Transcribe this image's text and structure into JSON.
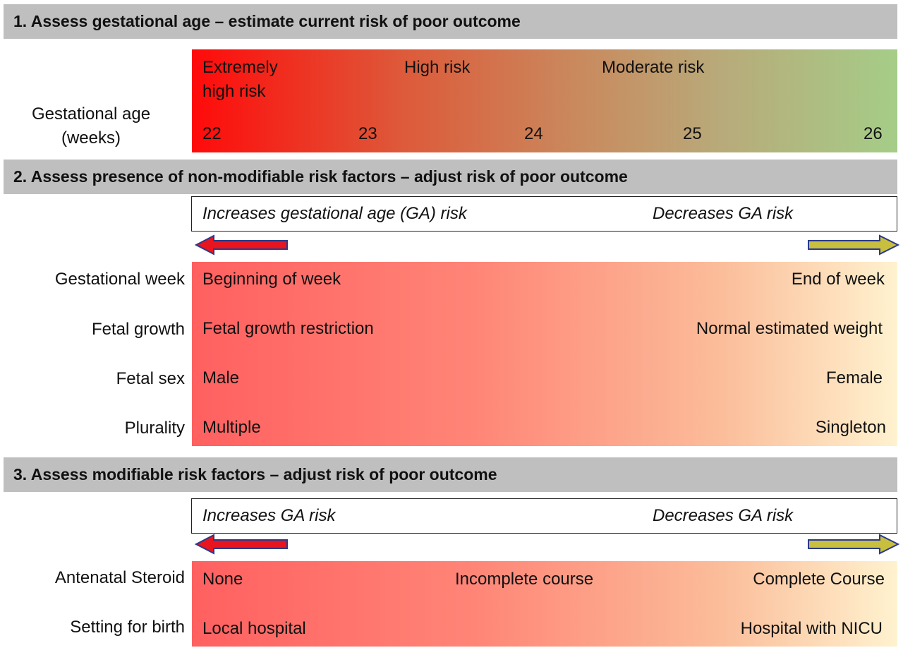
{
  "section1": {
    "heading": "1. Assess gestational age – estimate current risk of poor outcome",
    "row_label_line1": "Gestational age",
    "row_label_line2": "(weeks)",
    "risk_line1": "Extremely",
    "risk_line2": "high risk",
    "risk_high": "High risk",
    "risk_moderate": "Moderate risk",
    "weeks": [
      "22",
      "23",
      "24",
      "25",
      "26"
    ]
  },
  "section2": {
    "heading": "2. Assess presence of non-modifiable risk factors – adjust risk of poor outcome",
    "increase_label": "Increases gestational age (GA) risk",
    "decrease_label": "Decreases GA risk",
    "rows": [
      {
        "label": "Gestational week",
        "left": "Beginning of week",
        "right": "End of week"
      },
      {
        "label": "Fetal growth",
        "left": "Fetal growth restriction",
        "right": "Normal estimated weight"
      },
      {
        "label": "Fetal sex",
        "left": "Male",
        "right": "Female"
      },
      {
        "label": "Plurality",
        "left": "Multiple",
        "right": "Singleton"
      }
    ]
  },
  "section3": {
    "heading": "3. Assess modifiable risk factors – adjust risk of poor outcome",
    "increase_label": "Increases GA risk",
    "decrease_label": "Decreases GA risk",
    "rows": [
      {
        "label": "Antenatal Steroid",
        "left": "None",
        "middle": "Incomplete course",
        "right": "Complete Course"
      },
      {
        "label": "Setting for birth",
        "left": "Local hospital",
        "right": "Hospital with NICU"
      }
    ]
  },
  "colors": {
    "band": "#bfbfbf",
    "extreme_red": "#ff0a0a",
    "green_end": "#a5cd88",
    "left_arrow": "#e8141e",
    "right_arrow": "#c9bf3e"
  }
}
